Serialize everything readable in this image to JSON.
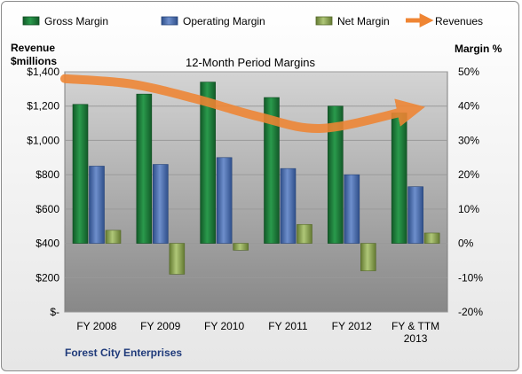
{
  "chart_data": {
    "type": "bar",
    "title": "12-Month Period Margins",
    "categories": [
      "FY 2008",
      "FY 2009",
      "FY 2010",
      "FY 2011",
      "FY 2012",
      "FY & TTM|2013"
    ],
    "series": [
      {
        "name": "Gross Margin",
        "axis": "right",
        "color": "#1e7a3c",
        "values": [
          40.5,
          43.5,
          47,
          42.5,
          40,
          38
        ]
      },
      {
        "name": "Operating Margin",
        "axis": "right",
        "color": "#4a6fb0",
        "values": [
          22.5,
          23,
          25,
          21.8,
          20,
          16.5
        ]
      },
      {
        "name": "Net Margin",
        "axis": "right",
        "color": "#8faa55",
        "values": [
          3.8,
          -9,
          -2,
          5.5,
          -8,
          3
        ]
      },
      {
        "name": "Revenues",
        "axis": "left",
        "type": "line",
        "color": "#ef8533",
        "values": [
          1360,
          1330,
          1245,
          1140,
          1070,
          1175
        ]
      }
    ],
    "y_left": {
      "label_line1": "Revenue",
      "label_line2": "$millions",
      "ylim": [
        0,
        1400
      ],
      "ticks": [
        [
          "$-",
          0
        ],
        [
          "$200",
          200
        ],
        [
          "$400",
          400
        ],
        [
          "$600",
          600
        ],
        [
          "$800",
          800
        ],
        [
          "$1,000",
          1000
        ],
        [
          "$1,200",
          1200
        ],
        [
          "$1,400",
          1400
        ]
      ]
    },
    "y_right": {
      "label": "Margin %",
      "ylim": [
        -20,
        50
      ],
      "ticks": [
        [
          "-20%",
          -20
        ],
        [
          "-10%",
          -10
        ],
        [
          "0%",
          0
        ],
        [
          "10%",
          10
        ],
        [
          "20%",
          20
        ],
        [
          "30%",
          30
        ],
        [
          "40%",
          40
        ],
        [
          "50%",
          50
        ]
      ]
    },
    "company": "Forest City Enterprises",
    "legend_position": "top",
    "grid": true
  }
}
